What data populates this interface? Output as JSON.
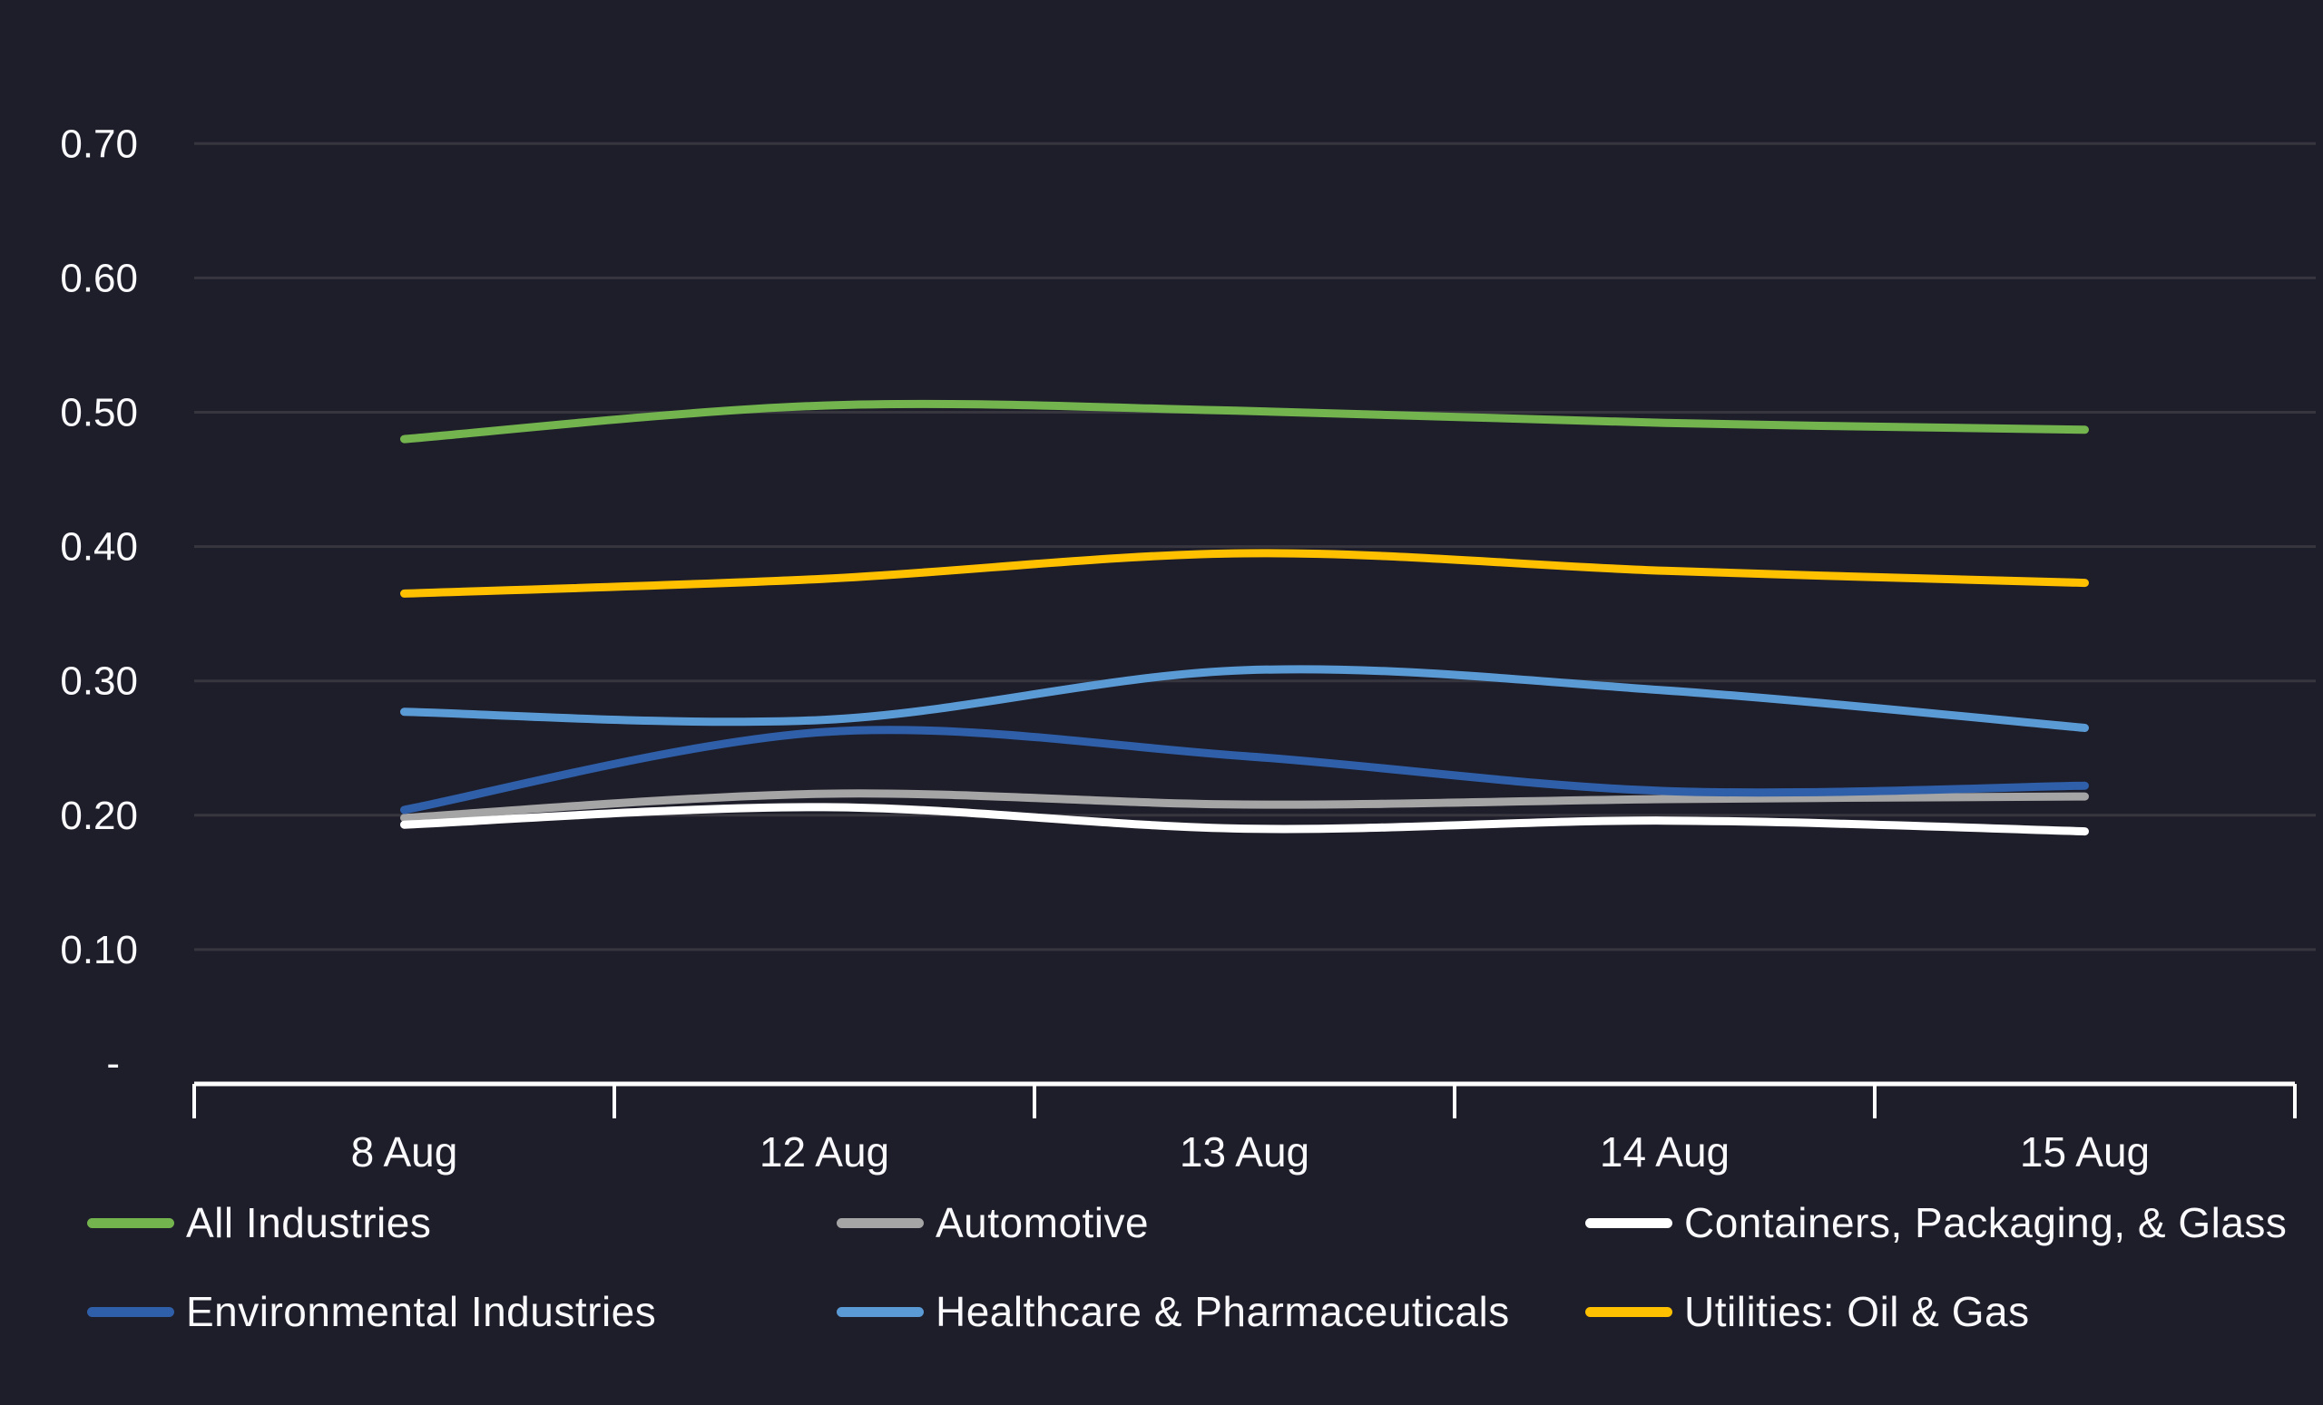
{
  "colors": {
    "background": "#1E1D2A",
    "gridline": "#37363F",
    "axis": "#FFFFFF",
    "label_text": "#FAFAFC"
  },
  "chart_data": {
    "type": "line",
    "smooth": true,
    "grid": true,
    "legend_position": "bottom",
    "title": "",
    "xlabel": "",
    "ylabel": "",
    "ylim": [
      0,
      0.7
    ],
    "categories": [
      "8 Aug",
      "12 Aug",
      "13 Aug",
      "14 Aug",
      "15 Aug"
    ],
    "y_ticks": [
      {
        "label": "0.70",
        "value": 0.7
      },
      {
        "label": "0.60",
        "value": 0.6
      },
      {
        "label": "0.50",
        "value": 0.5
      },
      {
        "label": "0.40",
        "value": 0.4
      },
      {
        "label": "0.30",
        "value": 0.3
      },
      {
        "label": "0.20",
        "value": 0.2
      },
      {
        "label": "0.10",
        "value": 0.1
      },
      {
        "label": "-",
        "value": 0.0
      }
    ],
    "series": [
      {
        "name": "All Industries",
        "color": "#74B44F",
        "values": [
          0.48,
          0.505,
          0.501,
          0.492,
          0.487
        ]
      },
      {
        "name": "Automotive",
        "color": "#A5A5A5",
        "values": [
          0.198,
          0.216,
          0.208,
          0.212,
          0.214
        ]
      },
      {
        "name": "Containers, Packaging, & Glass",
        "color": "#FFFFFF",
        "values": [
          0.193,
          0.206,
          0.19,
          0.196,
          0.188
        ]
      },
      {
        "name": "Environmental Industries",
        "color": "#2F5FA8",
        "values": [
          0.204,
          0.262,
          0.244,
          0.218,
          0.222
        ]
      },
      {
        "name": "Healthcare & Pharmaceuticals",
        "color": "#5B9BD5",
        "values": [
          0.277,
          0.271,
          0.308,
          0.293,
          0.265
        ]
      },
      {
        "name": "Utilities: Oil & Gas",
        "color": "#FFC000",
        "values": [
          0.365,
          0.376,
          0.395,
          0.382,
          0.373
        ]
      }
    ]
  }
}
